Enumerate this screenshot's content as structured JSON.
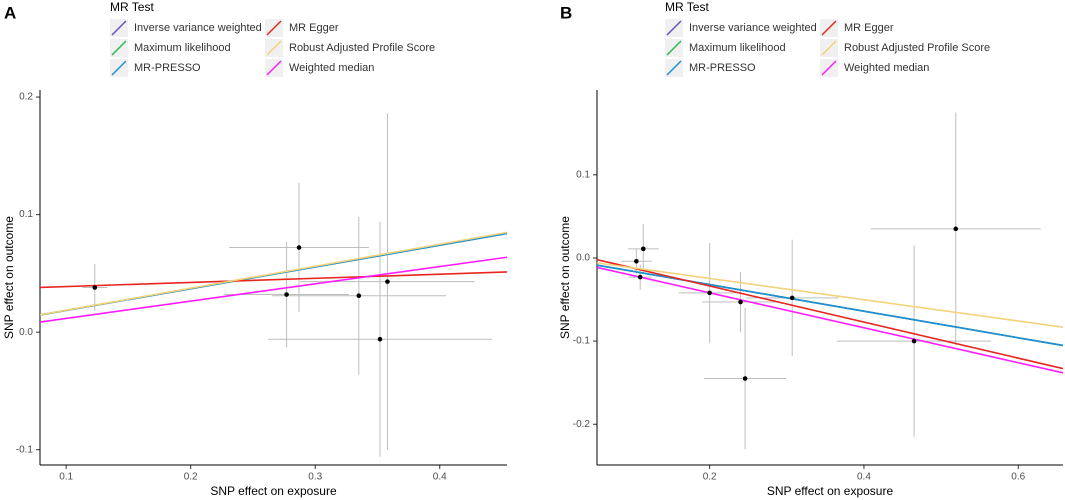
{
  "chart_data": [
    {
      "type": "scatter",
      "panel": "A",
      "legend_title": "MR Test",
      "x_label": "SNP effect on exposure",
      "y_label": "SNP effect on outcome",
      "xlim": [
        0.079,
        0.454
      ],
      "ylim": [
        -0.113,
        0.206
      ],
      "xticks": [
        0.1,
        0.2,
        0.3,
        0.4
      ],
      "yticks": [
        -0.1,
        {
          "value": 0,
          "label": "0.0"
        },
        0.1,
        0.2
      ],
      "points": {
        "x": [
          0.123,
          0.287,
          0.277,
          0.335,
          0.358,
          0.352
        ],
        "y": [
          0.038,
          0.072,
          0.032,
          0.031,
          0.043,
          -0.006
        ],
        "xerr": [
          0.01,
          0.056,
          0.05,
          0.07,
          0.07,
          0.09
        ],
        "yerr": [
          0.02,
          0.055,
          0.045,
          0.067,
          0.143,
          0.1
        ]
      },
      "series": [
        {
          "name": "Inverse variance weighted",
          "color": "#6a4fc7",
          "slope": 0.185,
          "intercept": 0
        },
        {
          "name": "Maximum likelihood",
          "color": "#2eb84f",
          "slope": 0.185,
          "intercept": 0
        },
        {
          "name": "MR-PRESSO",
          "color": "#1f8fd6",
          "slope": 0.185,
          "intercept": 0
        },
        {
          "name": "MR Egger",
          "color": "#e8251e",
          "slope": 0.035,
          "intercept": 0.0353
        },
        {
          "name": "Robust Adjusted Profile Score",
          "color": "#f2d27a",
          "slope": 0.187,
          "intercept": 0
        },
        {
          "name": "Weighted median",
          "color": "#ff1aff",
          "slope": 0.147,
          "intercept": -0.003
        }
      ]
    },
    {
      "type": "scatter",
      "panel": "B",
      "legend_title": "MR Test",
      "x_label": "SNP effect on exposure",
      "y_label": "SNP effect on outcome",
      "xlim": [
        0.054,
        0.658
      ],
      "ylim": [
        -0.249,
        0.202
      ],
      "xticks": [
        0.2,
        0.4,
        0.6
      ],
      "yticks": [
        -0.2,
        -0.1,
        {
          "value": 0,
          "label": "0.0"
        },
        0.1
      ],
      "points": {
        "x": [
          0.105,
          0.114,
          0.11,
          0.2,
          0.24,
          0.246,
          0.307,
          0.465,
          0.519
        ],
        "y": [
          -0.004,
          0.011,
          -0.023,
          -0.042,
          -0.053,
          -0.145,
          -0.048,
          -0.1,
          0.035
        ],
        "xerr": [
          0.02,
          0.02,
          0.015,
          0.04,
          0.05,
          0.053,
          0.06,
          0.1,
          0.11
        ],
        "yerr": [
          0.015,
          0.03,
          0.015,
          0.06,
          0.036,
          0.085,
          0.07,
          0.115,
          0.14
        ]
      },
      "series": [
        {
          "name": "Inverse variance weighted",
          "color": "#6a4fc7",
          "slope": -0.16,
          "intercept": 0
        },
        {
          "name": "Maximum likelihood",
          "color": "#2eb84f",
          "slope": -0.16,
          "intercept": 0
        },
        {
          "name": "MR-PRESSO",
          "color": "#1f8fd6",
          "slope": -0.16,
          "intercept": 0
        },
        {
          "name": "MR Egger",
          "color": "#e8251e",
          "slope": -0.217,
          "intercept": 0.0097
        },
        {
          "name": "Robust Adjusted Profile Score",
          "color": "#f2d27a",
          "slope": -0.128,
          "intercept": 0.001
        },
        {
          "name": "Weighted median",
          "color": "#ff1aff",
          "slope": -0.21,
          "intercept": 0
        }
      ]
    }
  ]
}
